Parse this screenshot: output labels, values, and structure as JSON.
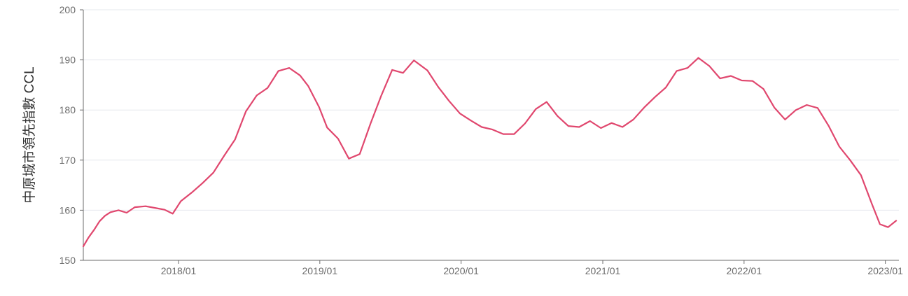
{
  "chart_data": {
    "type": "line",
    "title": "",
    "xlabel": "",
    "ylabel": "中原城市領先指數 CCL",
    "ylim": [
      150,
      200
    ],
    "y_ticks": [
      150,
      160,
      170,
      180,
      190,
      200
    ],
    "x_ticks": [
      "2018/01",
      "2019/01",
      "2020/01",
      "2021/01",
      "2022/01",
      "2023/01"
    ],
    "x_range": [
      "2017-04-30",
      "2023-02-05"
    ],
    "grid": "horizontal",
    "legend": "none",
    "colors": {
      "line": "#e0476e",
      "grid": "#e6e8ee",
      "axis": "#6b6b6b"
    },
    "series": [
      {
        "x": [
          "2017-04-30",
          "2017-05-14",
          "2017-05-28",
          "2017-06-11",
          "2017-06-25",
          "2017-07-09",
          "2017-07-30",
          "2017-08-20",
          "2017-09-10",
          "2017-10-08",
          "2017-11-05",
          "2017-11-26",
          "2017-12-17",
          "2018-01-07",
          "2018-02-04",
          "2018-03-04",
          "2018-04-01",
          "2018-04-29",
          "2018-05-27",
          "2018-06-24",
          "2018-07-22",
          "2018-08-19",
          "2018-09-16",
          "2018-10-14",
          "2018-11-11",
          "2018-12-02",
          "2018-12-30",
          "2019-01-20",
          "2019-02-17",
          "2019-03-17",
          "2019-04-14",
          "2019-05-12",
          "2019-06-09",
          "2019-07-07",
          "2019-08-04",
          "2019-09-01",
          "2019-10-06",
          "2019-11-03",
          "2019-12-01",
          "2019-12-29",
          "2020-01-26",
          "2020-02-23",
          "2020-03-22",
          "2020-04-19",
          "2020-05-17",
          "2020-06-14",
          "2020-07-12",
          "2020-08-09",
          "2020-09-06",
          "2020-10-04",
          "2020-11-01",
          "2020-11-29",
          "2020-12-27",
          "2021-01-24",
          "2021-02-21",
          "2021-03-21",
          "2021-04-18",
          "2021-05-16",
          "2021-06-13",
          "2021-07-11",
          "2021-08-08",
          "2021-09-05",
          "2021-10-03",
          "2021-10-31",
          "2021-11-28",
          "2021-12-26",
          "2022-01-23",
          "2022-02-20",
          "2022-03-20",
          "2022-04-17",
          "2022-05-15",
          "2022-06-12",
          "2022-07-10",
          "2022-08-07",
          "2022-09-04",
          "2022-10-02",
          "2022-10-30",
          "2022-11-27",
          "2022-12-18",
          "2023-01-08",
          "2023-01-29"
        ],
        "values": [
          152.8,
          154.6,
          156.1,
          157.8,
          158.9,
          159.6,
          160.0,
          159.5,
          160.6,
          160.8,
          160.4,
          160.1,
          159.3,
          161.8,
          163.5,
          165.4,
          167.5,
          170.9,
          174.1,
          179.7,
          182.9,
          184.4,
          187.8,
          188.4,
          186.9,
          184.8,
          180.6,
          176.5,
          174.3,
          170.3,
          171.2,
          177.3,
          182.9,
          188.0,
          187.4,
          189.9,
          187.9,
          184.6,
          181.8,
          179.3,
          177.9,
          176.6,
          176.1,
          175.2,
          175.2,
          177.3,
          180.2,
          181.6,
          178.8,
          176.8,
          176.6,
          177.8,
          176.4,
          177.4,
          176.6,
          178.1,
          180.5,
          182.6,
          184.5,
          187.8,
          188.4,
          190.4,
          188.8,
          186.3,
          186.8,
          185.9,
          185.8,
          184.2,
          180.5,
          178.1,
          180.0,
          181.0,
          180.4,
          176.9,
          172.7,
          170.0,
          167.0,
          161.3,
          157.2,
          156.6,
          157.9
        ]
      }
    ]
  }
}
